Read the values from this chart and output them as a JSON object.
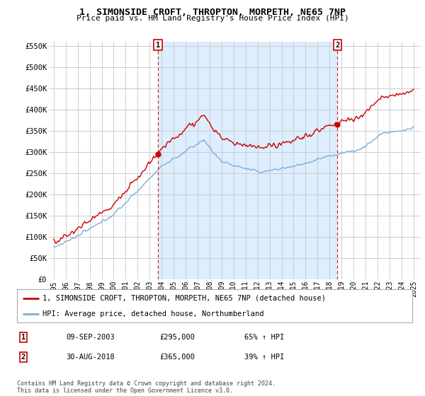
{
  "title": "1, SIMONSIDE CROFT, THROPTON, MORPETH, NE65 7NP",
  "subtitle": "Price paid vs. HM Land Registry's House Price Index (HPI)",
  "ylim": [
    0,
    560000
  ],
  "yticks": [
    0,
    50000,
    100000,
    150000,
    200000,
    250000,
    300000,
    350000,
    400000,
    450000,
    500000,
    550000
  ],
  "ytick_labels": [
    "£0",
    "£50K",
    "£100K",
    "£150K",
    "£200K",
    "£250K",
    "£300K",
    "£350K",
    "£400K",
    "£450K",
    "£500K",
    "£550K"
  ],
  "xlim_start": 1994.6,
  "xlim_end": 2025.6,
  "xticks": [
    1995,
    1996,
    1997,
    1998,
    1999,
    2000,
    2001,
    2002,
    2003,
    2004,
    2005,
    2006,
    2007,
    2008,
    2009,
    2010,
    2011,
    2012,
    2013,
    2014,
    2015,
    2016,
    2017,
    2018,
    2019,
    2020,
    2021,
    2022,
    2023,
    2024,
    2025
  ],
  "sale1_x": 2003.69,
  "sale1_y": 295000,
  "sale2_x": 2018.66,
  "sale2_y": 365000,
  "legend_line1": "1, SIMONSIDE CROFT, THROPTON, MORPETH, NE65 7NP (detached house)",
  "legend_line2": "HPI: Average price, detached house, Northumberland",
  "table_row1": [
    "1",
    "09-SEP-2003",
    "£295,000",
    "65% ↑ HPI"
  ],
  "table_row2": [
    "2",
    "30-AUG-2018",
    "£365,000",
    "39% ↑ HPI"
  ],
  "footer": "Contains HM Land Registry data © Crown copyright and database right 2024.\nThis data is licensed under the Open Government Licence v3.0.",
  "hpi_color": "#7bafd4",
  "price_color": "#cc0000",
  "shade_color": "#ddeeff",
  "grid_color": "#cccccc",
  "background_color": "#ffffff"
}
